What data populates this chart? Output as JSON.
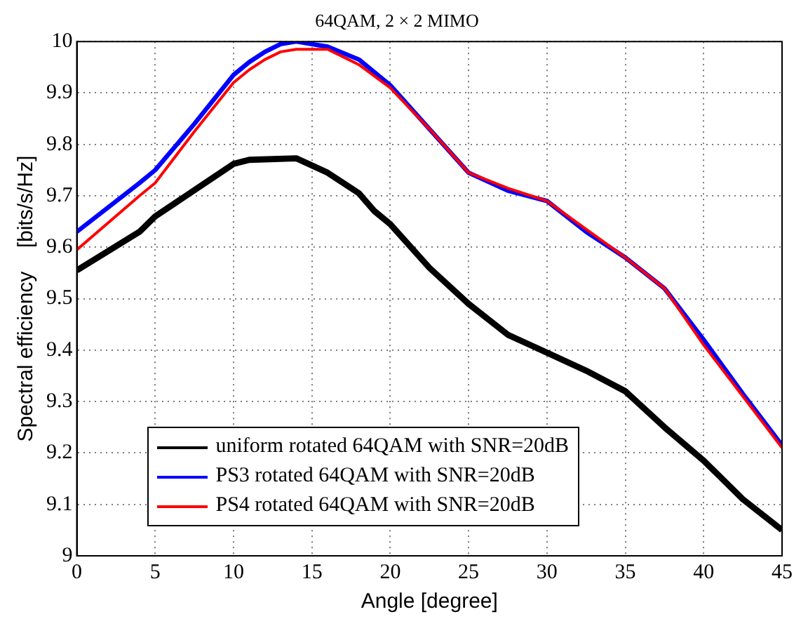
{
  "chart_data": {
    "type": "line",
    "title": "64QAM, 2 × 2 MIMO",
    "xlabel": "Angle [degree]",
    "ylabel": "Spectral efficiency    [bits/s/Hz]",
    "xlim": [
      0,
      45
    ],
    "xticks": [
      0,
      5,
      10,
      15,
      20,
      25,
      30,
      35,
      40,
      45
    ],
    "ylim": [
      9,
      10
    ],
    "yticks": [
      9,
      9.1,
      9.2,
      9.3,
      9.4,
      9.5,
      9.6,
      9.7,
      9.8,
      9.9,
      10
    ],
    "grid": true,
    "legend": "bottom left",
    "line_style": "solid",
    "marker": "none",
    "series": [
      {
        "name": "uniform rotated 64QAM with SNR=20dB",
        "color": "#000000",
        "x": [
          0,
          4,
          5,
          10,
          11,
          14,
          16,
          18,
          19,
          20,
          22.5,
          25,
          27.5,
          30,
          32.5,
          35,
          37.5,
          40,
          42.5,
          45
        ],
        "values": [
          9.555,
          9.63,
          9.66,
          9.762,
          9.77,
          9.773,
          9.745,
          9.705,
          9.67,
          9.645,
          9.56,
          9.49,
          9.43,
          9.395,
          9.36,
          9.32,
          9.25,
          9.185,
          9.11,
          9.05
        ]
      },
      {
        "name": "PS3 rotated 64QAM with SNR=20dB",
        "color": "#0000ff",
        "x": [
          0,
          4,
          5,
          7.5,
          10,
          11,
          12,
          13,
          14,
          15,
          16,
          18,
          20,
          22.5,
          25,
          27.5,
          30,
          32.5,
          35,
          37.5,
          40,
          42.5,
          45
        ],
        "values": [
          9.63,
          9.725,
          9.75,
          9.84,
          9.935,
          9.96,
          9.98,
          9.995,
          10,
          9.995,
          9.99,
          9.965,
          9.915,
          9.83,
          9.745,
          9.71,
          9.69,
          9.63,
          9.58,
          9.52,
          9.42,
          9.315,
          9.215
        ]
      },
      {
        "name": "PS4 rotated 64QAM with SNR=20dB",
        "color": "#ff0000",
        "x": [
          0,
          4,
          5,
          7.5,
          10,
          11,
          12,
          13,
          14,
          15,
          16,
          18,
          20,
          22.5,
          25,
          27.5,
          30,
          32.5,
          35,
          37.5,
          40,
          42.5,
          45
        ],
        "values": [
          9.595,
          9.7,
          9.725,
          9.825,
          9.92,
          9.945,
          9.965,
          9.98,
          9.985,
          9.985,
          9.985,
          9.955,
          9.91,
          9.83,
          9.745,
          9.715,
          9.69,
          9.635,
          9.58,
          9.52,
          9.41,
          9.31,
          9.21
        ]
      }
    ]
  }
}
